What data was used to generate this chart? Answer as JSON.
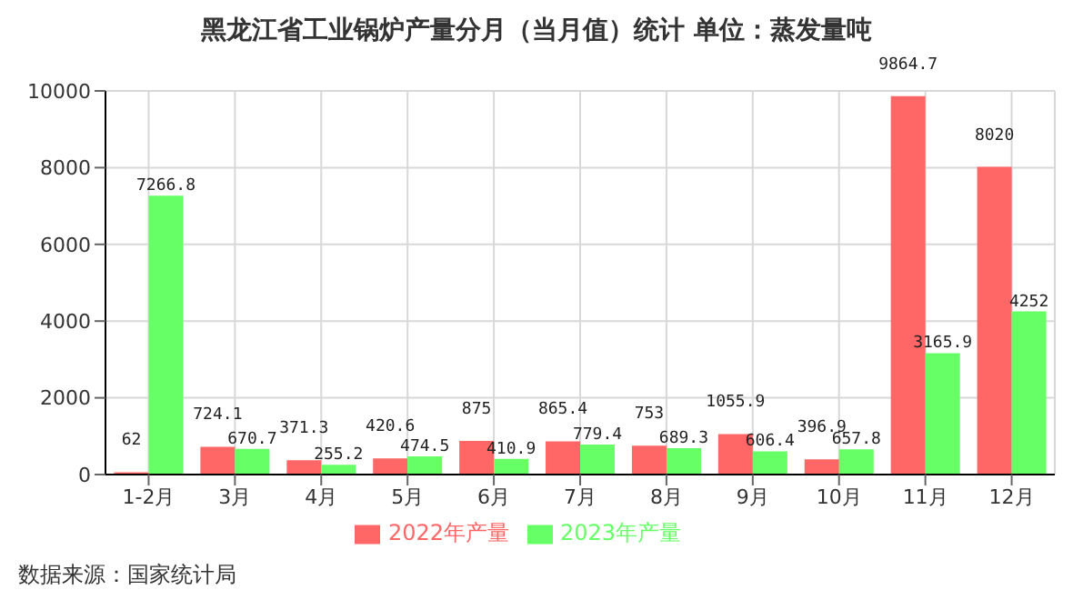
{
  "chart_data": {
    "type": "bar",
    "title": "黑龙江省工业锅炉产量分月（当月值）统计 单位：蒸发量吨",
    "categories": [
      "1-2月",
      "3月",
      "4月",
      "5月",
      "6月",
      "7月",
      "8月",
      "9月",
      "10月",
      "11月",
      "12月"
    ],
    "series": [
      {
        "name": "2022年产量",
        "color": "#ff6666",
        "values": [
          62,
          724.1,
          371.3,
          420.6,
          875,
          865.4,
          753,
          1055.9,
          396.9,
          9864.7,
          8020
        ]
      },
      {
        "name": "2023年产量",
        "color": "#66ff66",
        "values": [
          7266.8,
          670.7,
          255.2,
          474.5,
          410.9,
          779.4,
          689.3,
          606.4,
          657.8,
          3165.9,
          4252
        ]
      }
    ],
    "ylim": [
      0,
      10000
    ],
    "yticks": [
      0,
      2000,
      4000,
      6000,
      8000,
      10000
    ],
    "grid": true,
    "legend": "bottom",
    "data_labels": true,
    "annotations": [
      "数据来源：国家统计局"
    ]
  }
}
